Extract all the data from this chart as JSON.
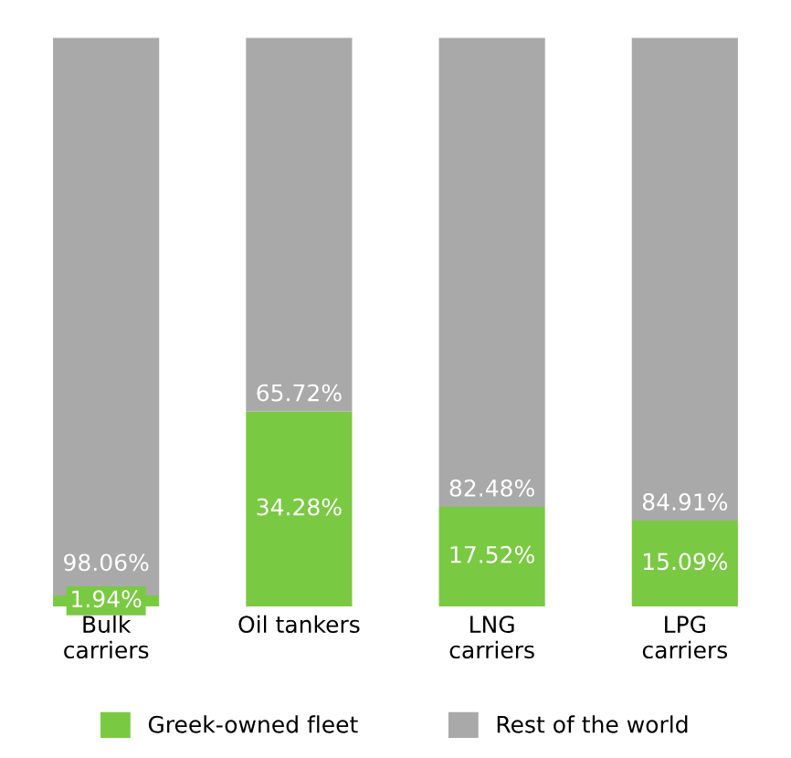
{
  "chart_data": {
    "type": "bar",
    "stacked": true,
    "categories": [
      "Bulk\ncarriers",
      "Oil tankers",
      "LNG\ncarriers",
      "LPG\ncarriers"
    ],
    "series": [
      {
        "name": "Greek-owned fleet",
        "color": "#7ac943",
        "values": [
          1.94,
          34.28,
          17.52,
          15.09
        ],
        "value_labels": [
          "1.94%",
          "34.28%",
          "17.52%",
          "15.09%"
        ]
      },
      {
        "name": "Rest of the world",
        "color": "#a9a9a9",
        "values": [
          98.06,
          65.72,
          82.48,
          84.91
        ],
        "value_labels": [
          "98.06%",
          "65.72%",
          "82.48%",
          "84.91%"
        ]
      }
    ],
    "legend": "bottom",
    "grid": false
  }
}
